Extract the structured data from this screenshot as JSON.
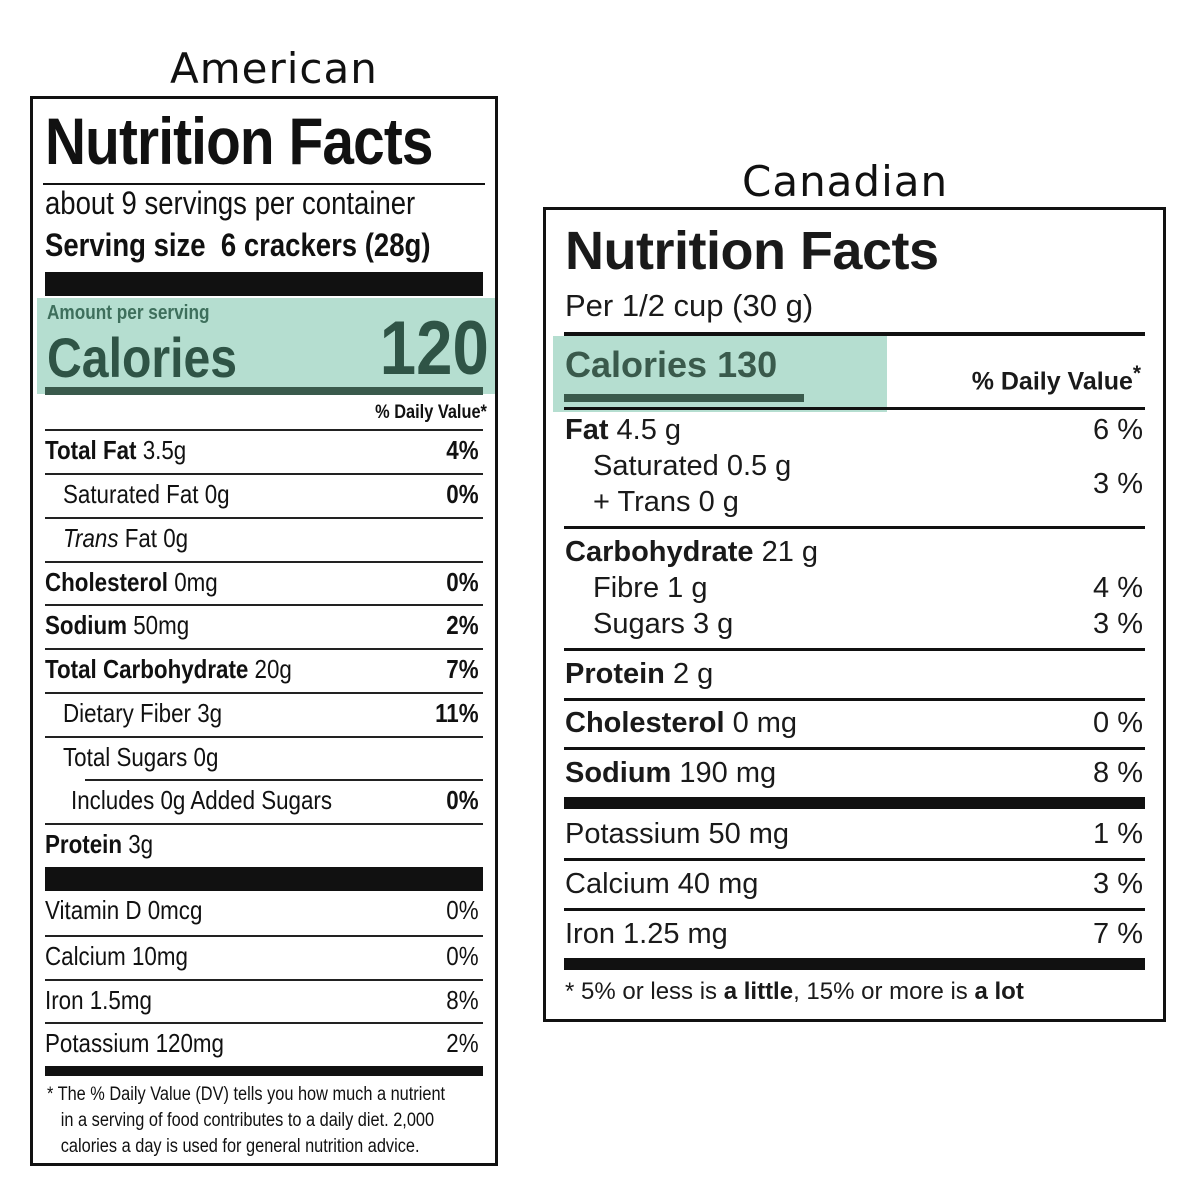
{
  "captions": {
    "american": "American",
    "canadian": "Canadian"
  },
  "american": {
    "title": "Nutrition Facts",
    "servings": "about 9 servings per container",
    "serving_size_label": "Serving size",
    "serving_size_value": "6 crackers (28g)",
    "amount_per_serving": "Amount per serving",
    "calories_label": "Calories",
    "calories_value": "120",
    "dv_header": "% Daily Value*",
    "rows": [
      {
        "name": "Total Fat",
        "amount": " 3.5g",
        "pct": "4%"
      },
      {
        "name": "Saturated Fat 0g",
        "pct": "0%"
      },
      {
        "name_italic": "Trans",
        "name": " Fat 0g"
      },
      {
        "name": "Cholesterol",
        "amount": " 0mg",
        "pct": "0%"
      },
      {
        "name": "Sodium",
        "amount": " 50mg",
        "pct": "2%"
      },
      {
        "name": "Total Carbohydrate",
        "amount": " 20g",
        "pct": "7%"
      },
      {
        "name": "Dietary Fiber 3g",
        "pct": "11%"
      },
      {
        "name": "Total Sugars 0g"
      },
      {
        "name": "Includes 0g Added Sugars",
        "pct": "0%"
      },
      {
        "name": "Protein",
        "amount": " 3g"
      }
    ],
    "vitamins": [
      {
        "name": "Vitamin D 0mcg",
        "pct": "0%"
      },
      {
        "name": "Calcium 10mg",
        "pct": "0%"
      },
      {
        "name": "Iron 1.5mg",
        "pct": "8%"
      },
      {
        "name": "Potassium 120mg",
        "pct": "2%"
      }
    ],
    "footnote": [
      "* The % Daily Value (DV) tells you how much a nutrient",
      "in a serving of food contributes to a daily diet. 2,000",
      "calories a day is used for general nutrition advice."
    ]
  },
  "canadian": {
    "title": "Nutrition Facts",
    "per": "Per 1/2 cup (30 g)",
    "calories": "Calories 130",
    "dv_header": "% Daily Value",
    "dv_star": "*",
    "fat": {
      "name": "Fat",
      "amount": " 4.5 g",
      "pct": "6 %"
    },
    "saturated": "Saturated 0.5 g",
    "trans": "+ Trans 0 g",
    "sat_trans_pct": "3 %",
    "carbohydrate": {
      "name": "Carbohydrate",
      "amount": " 21 g"
    },
    "fibre": {
      "name": "Fibre 1 g",
      "pct": "4 %"
    },
    "sugars": {
      "name": "Sugars 3 g",
      "pct": "3 %"
    },
    "protein": {
      "name": "Protein",
      "amount": " 2 g"
    },
    "cholesterol": {
      "name": "Cholesterol",
      "amount": " 0 mg",
      "pct": "0 %"
    },
    "sodium": {
      "name": "Sodium",
      "amount": " 190 mg",
      "pct": "8 %"
    },
    "potassium": {
      "name": "Potassium 50 mg",
      "pct": "1 %"
    },
    "calcium": {
      "name": "Calcium 40 mg",
      "pct": "3 %"
    },
    "iron": {
      "name": "Iron 1.25 mg",
      "pct": "7 %"
    },
    "footnote": {
      "p1": "* 5% or less is ",
      "b1": "a little",
      "p2": ", 15% or more is ",
      "b2": "a lot"
    }
  },
  "colors": {
    "highlight": "#b5ded0",
    "highlight_text": "#3a5a4c",
    "ink": "#111111"
  }
}
